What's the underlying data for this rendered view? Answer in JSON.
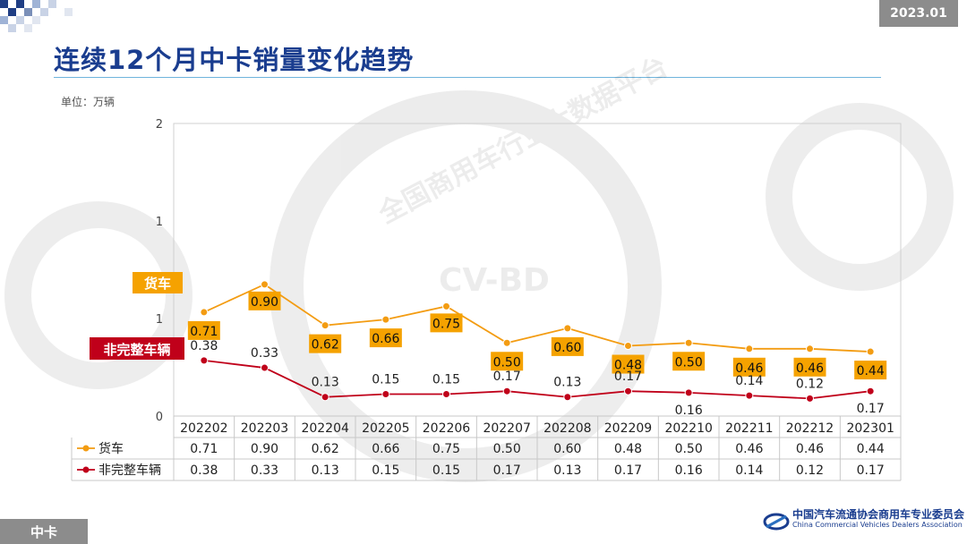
{
  "header": {
    "date": "2023.01",
    "title": "连续12个月中卡销量变化趋势",
    "unit_label": "单位：万辆"
  },
  "footer": {
    "section_tag": "中卡",
    "org_name_cn": "中国汽车流通协会商用车专业委员会",
    "org_name_en": "China Commercial Vehicles Dealers Association"
  },
  "watermark": {
    "text_1": "全国商用车行业大数据平台",
    "text_2": "CV-BD"
  },
  "colors": {
    "title": "#1a3d8f",
    "truck": "#f39c12",
    "truck_label_bg": "#f5a200",
    "incomplete": "#c0001a",
    "badge": "#8c8c8c"
  },
  "chart_data": {
    "type": "line",
    "title": "连续12个月中卡销量变化趋势",
    "ylabel": "单位：万辆",
    "ylim": [
      0,
      2
    ],
    "yticks": [
      "0",
      "1",
      "1",
      "2"
    ],
    "categories": [
      "202202",
      "202203",
      "202204",
      "202205",
      "202206",
      "202207",
      "202208",
      "202209",
      "202210",
      "202211",
      "202212",
      "202301"
    ],
    "series": [
      {
        "name": "货车",
        "values": [
          0.71,
          0.9,
          0.62,
          0.66,
          0.75,
          0.5,
          0.6,
          0.48,
          0.5,
          0.46,
          0.46,
          0.44
        ],
        "labels": [
          "0.71",
          "0.90",
          "0.62",
          "0.66",
          "0.75",
          "0.50",
          "0.60",
          "0.48",
          "0.50",
          "0.46",
          "0.46",
          "0.44"
        ]
      },
      {
        "name": "非完整车辆",
        "values": [
          0.38,
          0.33,
          0.13,
          0.15,
          0.15,
          0.17,
          0.13,
          0.17,
          0.16,
          0.14,
          0.12,
          0.17
        ],
        "labels": [
          "0.38",
          "0.33",
          "0.13",
          "0.15",
          "0.15",
          "0.17",
          "0.13",
          "0.17",
          "0.16",
          "0.14",
          "0.12",
          "0.17"
        ]
      }
    ]
  }
}
